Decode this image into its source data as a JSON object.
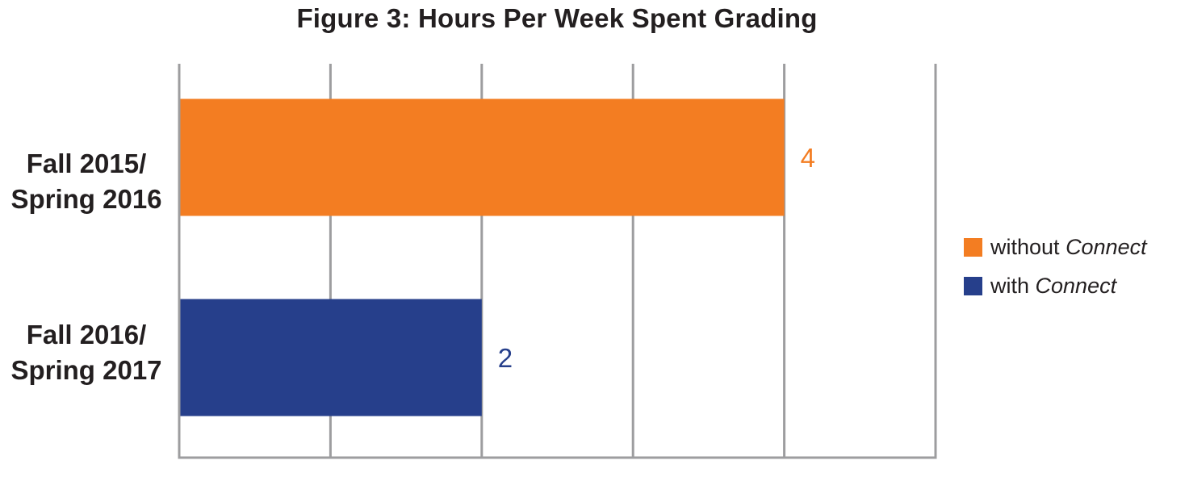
{
  "chart_data": {
    "type": "bar",
    "orientation": "horizontal",
    "title": "Figure 3: Hours Per Week Spent Grading",
    "categories": [
      [
        "Fall 2015/",
        "Spring 2016"
      ],
      [
        "Fall 2016/",
        "Spring 2017"
      ]
    ],
    "values": [
      4,
      2
    ],
    "data_labels": [
      "4",
      "2"
    ],
    "colors": [
      "#f37d22",
      "#263f8b"
    ],
    "xlim": [
      0,
      5
    ],
    "grid": true,
    "legend": {
      "placement": "right",
      "entries": [
        {
          "prefix": "without ",
          "emphasis": "Connect",
          "color": "#f37d22"
        },
        {
          "prefix": "with ",
          "emphasis": "Connect",
          "color": "#263f8b"
        }
      ]
    }
  }
}
